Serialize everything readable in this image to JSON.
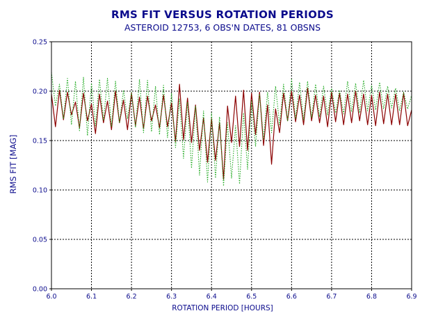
{
  "chart_data": {
    "type": "line",
    "title": "RMS FIT VERSUS ROTATION PERIODS",
    "subtitle": "ASTEROID 12753, 6 OBS'N DATES, 81 OBSNS",
    "xlabel": "ROTATION PERIOD [HOURS]",
    "ylabel": "RMS FIT [MAG]",
    "xlim": [
      6.0,
      6.9
    ],
    "ylim": [
      0.0,
      0.25
    ],
    "x_ticks": [
      "6.0",
      "6.1",
      "6.2",
      "6.3",
      "6.4",
      "6.5",
      "6.6",
      "6.7",
      "6.8",
      "6.9"
    ],
    "y_ticks": [
      "0.00",
      "0.05",
      "0.10",
      "0.15",
      "0.20",
      "0.25"
    ],
    "grid": true,
    "colors": {
      "text": "#0a0a8c",
      "red_series": "#8b0000",
      "green_series": "#1fa81f",
      "axis": "#000000",
      "grid": "#000000"
    },
    "series": [
      {
        "line_style": "solid",
        "color": "#8b0000",
        "x": [
          6.0,
          6.01,
          6.02,
          6.03,
          6.04,
          6.05,
          6.06,
          6.07,
          6.08,
          6.09,
          6.1,
          6.11,
          6.12,
          6.13,
          6.14,
          6.15,
          6.16,
          6.17,
          6.18,
          6.19,
          6.2,
          6.21,
          6.22,
          6.23,
          6.24,
          6.25,
          6.26,
          6.27,
          6.28,
          6.29,
          6.3,
          6.31,
          6.32,
          6.33,
          6.34,
          6.35,
          6.36,
          6.37,
          6.38,
          6.39,
          6.4,
          6.41,
          6.42,
          6.43,
          6.44,
          6.45,
          6.46,
          6.47,
          6.48,
          6.49,
          6.5,
          6.51,
          6.52,
          6.53,
          6.54,
          6.55,
          6.56,
          6.57,
          6.58,
          6.59,
          6.6,
          6.61,
          6.62,
          6.63,
          6.64,
          6.65,
          6.66,
          6.67,
          6.68,
          6.69,
          6.7,
          6.71,
          6.72,
          6.73,
          6.74,
          6.75,
          6.76,
          6.77,
          6.78,
          6.79,
          6.8,
          6.81,
          6.82,
          6.83,
          6.84,
          6.85,
          6.86,
          6.87,
          6.88,
          6.89,
          6.9
        ],
        "values": [
          0.197,
          0.164,
          0.201,
          0.171,
          0.199,
          0.176,
          0.189,
          0.163,
          0.198,
          0.17,
          0.187,
          0.157,
          0.197,
          0.168,
          0.19,
          0.161,
          0.2,
          0.168,
          0.191,
          0.161,
          0.198,
          0.165,
          0.194,
          0.162,
          0.195,
          0.17,
          0.186,
          0.163,
          0.196,
          0.164,
          0.188,
          0.149,
          0.207,
          0.151,
          0.193,
          0.148,
          0.186,
          0.14,
          0.173,
          0.128,
          0.172,
          0.13,
          0.168,
          0.111,
          0.185,
          0.148,
          0.195,
          0.144,
          0.201,
          0.14,
          0.198,
          0.156,
          0.199,
          0.145,
          0.186,
          0.126,
          0.182,
          0.158,
          0.198,
          0.17,
          0.2,
          0.169,
          0.196,
          0.166,
          0.203,
          0.17,
          0.196,
          0.168,
          0.195,
          0.164,
          0.199,
          0.169,
          0.198,
          0.166,
          0.197,
          0.168,
          0.2,
          0.17,
          0.197,
          0.166,
          0.196,
          0.165,
          0.199,
          0.167,
          0.197,
          0.166,
          0.197,
          0.166,
          0.198,
          0.165,
          0.181
        ]
      },
      {
        "line_style": "dotted",
        "color": "#1fa81f",
        "x": [
          6.0,
          6.01,
          6.02,
          6.03,
          6.04,
          6.05,
          6.06,
          6.07,
          6.08,
          6.09,
          6.1,
          6.11,
          6.12,
          6.13,
          6.14,
          6.15,
          6.16,
          6.17,
          6.18,
          6.19,
          6.2,
          6.21,
          6.22,
          6.23,
          6.24,
          6.25,
          6.26,
          6.27,
          6.28,
          6.29,
          6.3,
          6.31,
          6.32,
          6.33,
          6.34,
          6.35,
          6.36,
          6.37,
          6.38,
          6.39,
          6.4,
          6.41,
          6.42,
          6.43,
          6.44,
          6.45,
          6.46,
          6.47,
          6.48,
          6.49,
          6.5,
          6.51,
          6.52,
          6.53,
          6.54,
          6.55,
          6.56,
          6.57,
          6.58,
          6.59,
          6.6,
          6.61,
          6.62,
          6.63,
          6.64,
          6.65,
          6.66,
          6.67,
          6.68,
          6.69,
          6.7,
          6.71,
          6.72,
          6.73,
          6.74,
          6.75,
          6.76,
          6.77,
          6.78,
          6.79,
          6.8,
          6.81,
          6.82,
          6.83,
          6.84,
          6.85,
          6.86,
          6.87,
          6.88,
          6.89,
          6.9
        ],
        "values": [
          0.219,
          0.185,
          0.207,
          0.172,
          0.213,
          0.166,
          0.21,
          0.16,
          0.214,
          0.155,
          0.208,
          0.165,
          0.212,
          0.17,
          0.213,
          0.164,
          0.21,
          0.168,
          0.201,
          0.172,
          0.199,
          0.163,
          0.212,
          0.158,
          0.211,
          0.159,
          0.205,
          0.156,
          0.206,
          0.153,
          0.198,
          0.143,
          0.192,
          0.132,
          0.189,
          0.122,
          0.185,
          0.115,
          0.18,
          0.108,
          0.178,
          0.112,
          0.174,
          0.104,
          0.168,
          0.112,
          0.165,
          0.106,
          0.178,
          0.121,
          0.19,
          0.144,
          0.197,
          0.151,
          0.199,
          0.158,
          0.205,
          0.166,
          0.207,
          0.17,
          0.212,
          0.172,
          0.209,
          0.171,
          0.21,
          0.173,
          0.207,
          0.174,
          0.205,
          0.176,
          0.203,
          0.178,
          0.201,
          0.177,
          0.21,
          0.179,
          0.208,
          0.178,
          0.211,
          0.18,
          0.206,
          0.181,
          0.209,
          0.182,
          0.205,
          0.183,
          0.203,
          0.18,
          0.199,
          0.182,
          0.196
        ]
      }
    ]
  }
}
